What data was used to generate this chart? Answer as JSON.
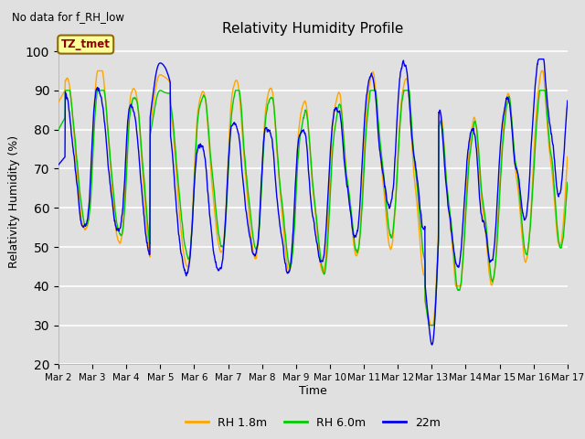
{
  "title": "Relativity Humidity Profile",
  "subtitle": "No data for f_RH_low",
  "xlabel": "Time",
  "ylabel": "Relativity Humidity (%)",
  "ylim": [
    20,
    103
  ],
  "yticks": [
    20,
    30,
    40,
    50,
    60,
    70,
    80,
    90,
    100
  ],
  "background_color": "#e0e0e0",
  "plot_bg_color": "#e0e0e0",
  "line_colors": {
    "rh18": "#FFA500",
    "rh60": "#00CC00",
    "rh22": "#0000EE"
  },
  "legend_labels": [
    "RH 1.8m",
    "RH 6.0m",
    "22m"
  ],
  "annotation_text": "TZ_tmet",
  "annotation_color": "#8B0000",
  "x_tick_labels": [
    "Mar 2",
    "Mar 3",
    "Mar 4",
    "Mar 5",
    "Mar 6",
    "Mar 7",
    "Mar 8",
    "Mar 9",
    "Mar 10",
    "Mar 11",
    "Mar 12",
    "Mar 13",
    "Mar 14",
    "Mar 15",
    "Mar 16",
    "Mar 17"
  ]
}
